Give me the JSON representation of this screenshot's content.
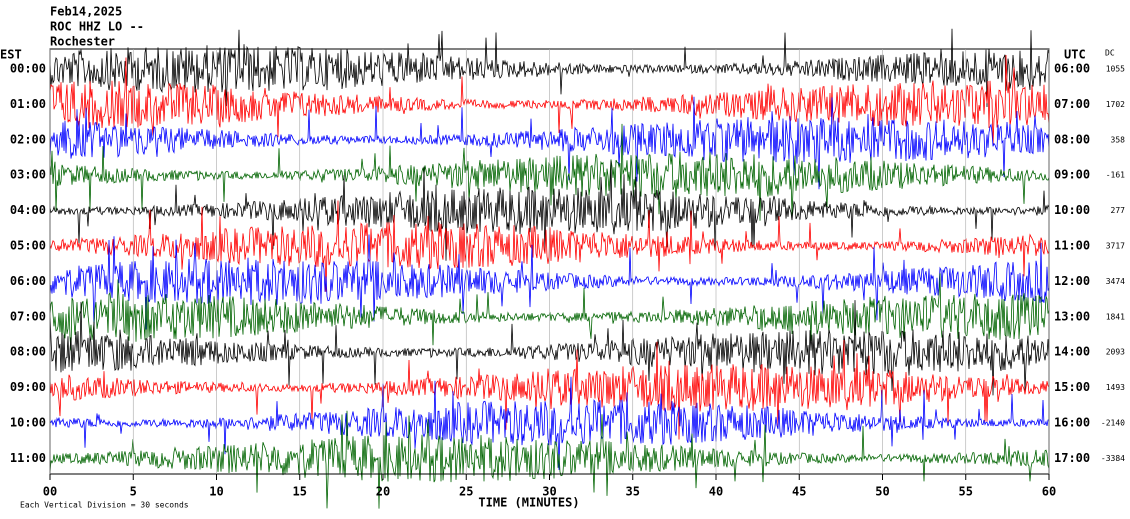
{
  "header": {
    "date": "Feb14,2025",
    "station": "ROC HHZ LO --",
    "location": "Rochester"
  },
  "left_axis_title": "EST",
  "right_axis_title": "UTC",
  "dc_title": "DC",
  "rows": [
    {
      "est": "00:00",
      "utc": "06:00",
      "dc": 1055
    },
    {
      "est": "01:00",
      "utc": "07:00",
      "dc": 1702
    },
    {
      "est": "02:00",
      "utc": "08:00",
      "dc": 358
    },
    {
      "est": "03:00",
      "utc": "09:00",
      "dc": -161
    },
    {
      "est": "04:00",
      "utc": "10:00",
      "dc": 277
    },
    {
      "est": "05:00",
      "utc": "11:00",
      "dc": 3717
    },
    {
      "est": "06:00",
      "utc": "12:00",
      "dc": 3474
    },
    {
      "est": "07:00",
      "utc": "13:00",
      "dc": 1841
    },
    {
      "est": "08:00",
      "utc": "14:00",
      "dc": 2093
    },
    {
      "est": "09:00",
      "utc": "15:00",
      "dc": 1493
    },
    {
      "est": "10:00",
      "utc": "16:00",
      "dc": -2140
    },
    {
      "est": "11:00",
      "utc": "17:00",
      "dc": -3384
    }
  ],
  "xlim": [
    0,
    60
  ],
  "xticks": [
    {
      "value": 0,
      "label": "00"
    },
    5,
    10,
    15,
    20,
    25,
    30,
    35,
    40,
    45,
    50,
    55,
    60
  ],
  "x_axis_title": "TIME (MINUTES)",
  "footer": "Each Vertical Division = 30 seconds",
  "trace_colors": [
    "#000000",
    "#ff0000",
    "#0000ff",
    "#006400"
  ]
}
